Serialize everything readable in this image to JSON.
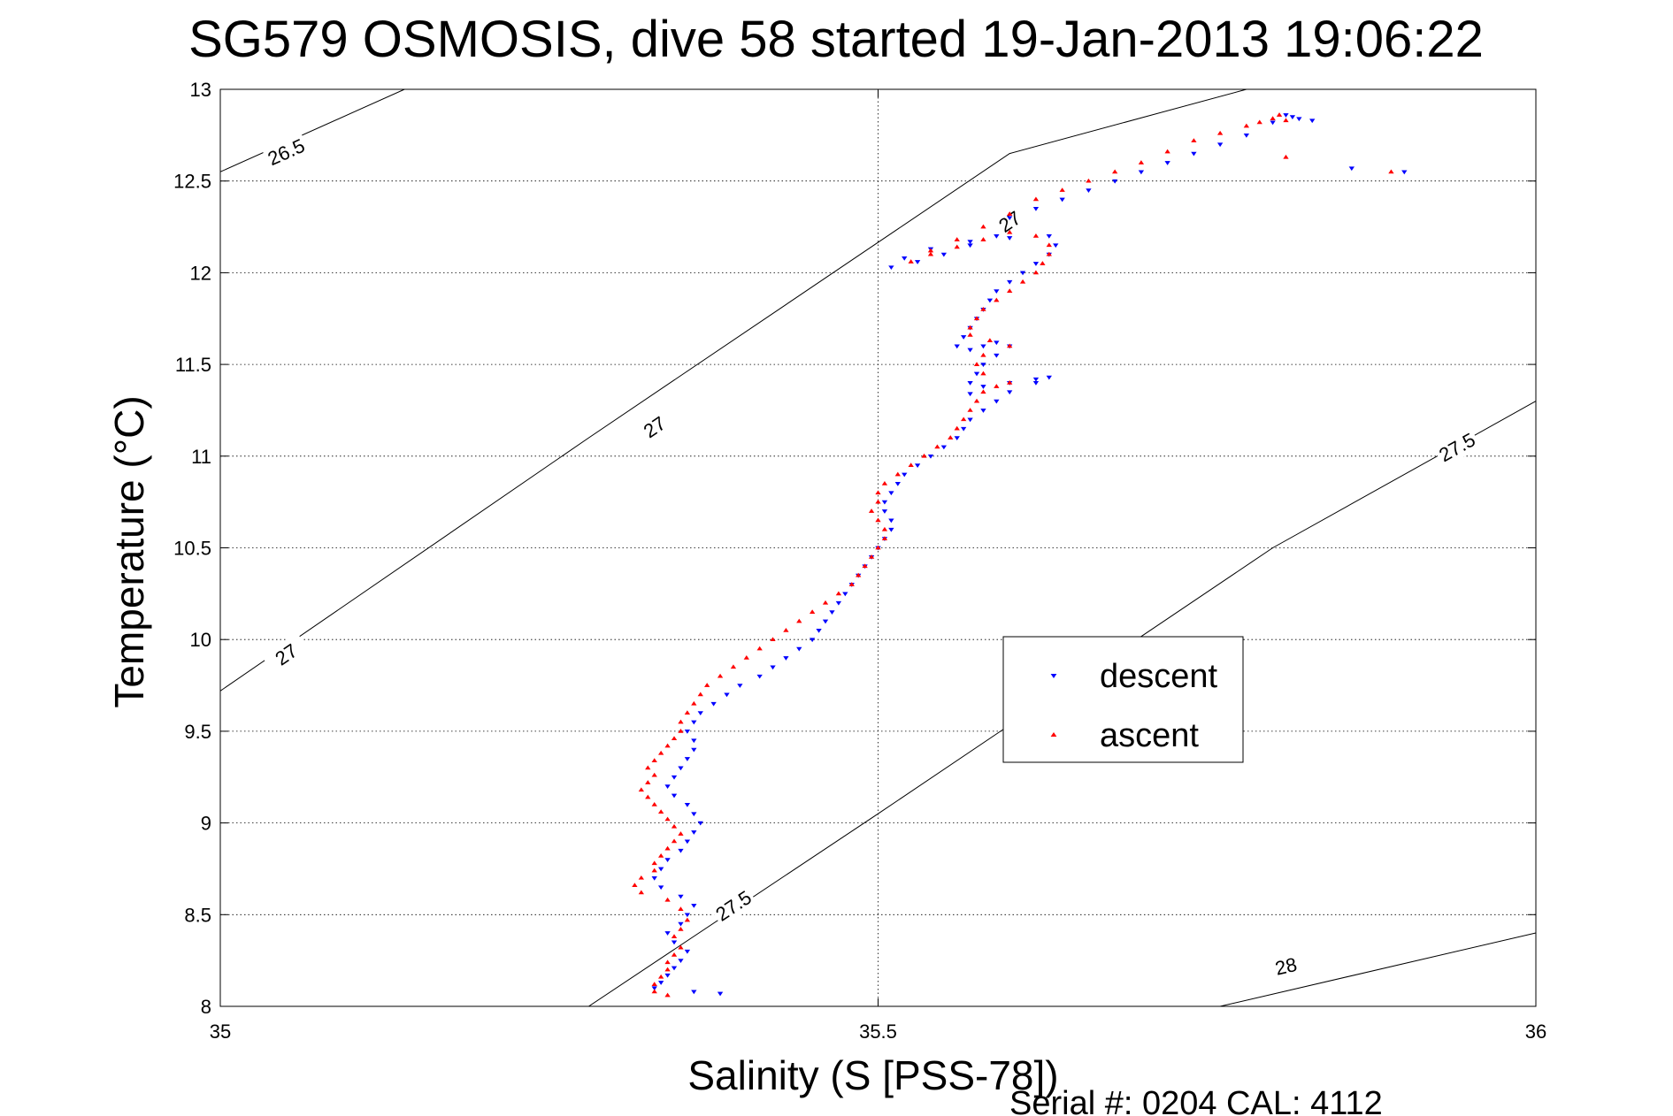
{
  "chart_data": {
    "type": "scatter",
    "title": "SG579 OSMOSIS, dive 58 started 19-Jan-2013 19:06:22",
    "xlabel": "Salinity (S [PSS-78])",
    "ylabel": "Temperature (°C)",
    "xlim": [
      35,
      36
    ],
    "ylim": [
      8,
      13
    ],
    "x_ticks": [
      35,
      35.5,
      36
    ],
    "y_ticks": [
      8,
      8.5,
      9,
      9.5,
      10,
      10.5,
      11,
      11.5,
      12,
      12.5,
      13
    ],
    "x_tick_labels": [
      "35",
      "35.5",
      "36"
    ],
    "y_tick_labels": [
      "8",
      "8.5",
      "9",
      "9.5",
      "10",
      "10.5",
      "11",
      "11.5",
      "12",
      "12.5",
      "13"
    ],
    "grid": true,
    "legend_position": "right-center",
    "footer": "Serial #: 0204  CAL: 4112",
    "density_contours": [
      {
        "label": "26.5",
        "points": [
          [
            35.0,
            12.55
          ],
          [
            35.14,
            13.0
          ]
        ],
        "label_positions": [
          [
            35.05,
            12.66
          ]
        ]
      },
      {
        "label": "27",
        "points": [
          [
            35.0,
            9.72
          ],
          [
            35.28,
            11.1
          ],
          [
            35.6,
            12.65
          ],
          [
            35.78,
            13.0
          ]
        ],
        "label_positions": [
          [
            35.05,
            9.92
          ],
          [
            35.33,
            11.16
          ],
          [
            35.6,
            12.28
          ]
        ]
      },
      {
        "label": "27.5",
        "points": [
          [
            35.28,
            8.0
          ],
          [
            35.5,
            9.05
          ],
          [
            35.8,
            10.5
          ],
          [
            36.0,
            11.3
          ]
        ],
        "label_positions": [
          [
            35.39,
            8.55
          ],
          [
            35.94,
            11.05
          ]
        ]
      },
      {
        "label": "28",
        "points": [
          [
            35.76,
            8.0
          ],
          [
            36.0,
            8.4
          ]
        ],
        "label_positions": [
          [
            35.81,
            8.22
          ]
        ]
      }
    ],
    "series": [
      {
        "name": "descent",
        "color": "#0000ff",
        "marker": "triangle-down",
        "points": [
          [
            35.38,
            8.07
          ],
          [
            35.36,
            8.08
          ],
          [
            35.33,
            8.1
          ],
          [
            35.335,
            8.13
          ],
          [
            35.34,
            8.17
          ],
          [
            35.345,
            8.21
          ],
          [
            35.35,
            8.25
          ],
          [
            35.355,
            8.3
          ],
          [
            35.345,
            8.35
          ],
          [
            35.34,
            8.4
          ],
          [
            35.35,
            8.45
          ],
          [
            35.355,
            8.5
          ],
          [
            35.36,
            8.55
          ],
          [
            35.35,
            8.6
          ],
          [
            35.335,
            8.65
          ],
          [
            35.33,
            8.7
          ],
          [
            35.335,
            8.75
          ],
          [
            35.34,
            8.8
          ],
          [
            35.35,
            8.85
          ],
          [
            35.355,
            8.9
          ],
          [
            35.36,
            8.95
          ],
          [
            35.365,
            9.0
          ],
          [
            35.36,
            9.05
          ],
          [
            35.355,
            9.1
          ],
          [
            35.345,
            9.15
          ],
          [
            35.34,
            9.2
          ],
          [
            35.345,
            9.25
          ],
          [
            35.35,
            9.3
          ],
          [
            35.355,
            9.35
          ],
          [
            35.36,
            9.4
          ],
          [
            35.36,
            9.45
          ],
          [
            35.355,
            9.5
          ],
          [
            35.36,
            9.55
          ],
          [
            35.365,
            9.6
          ],
          [
            35.375,
            9.65
          ],
          [
            35.385,
            9.7
          ],
          [
            35.395,
            9.75
          ],
          [
            35.41,
            9.8
          ],
          [
            35.42,
            9.85
          ],
          [
            35.43,
            9.9
          ],
          [
            35.44,
            9.95
          ],
          [
            35.45,
            10.0
          ],
          [
            35.455,
            10.05
          ],
          [
            35.46,
            10.1
          ],
          [
            35.465,
            10.15
          ],
          [
            35.47,
            10.2
          ],
          [
            35.475,
            10.25
          ],
          [
            35.48,
            10.3
          ],
          [
            35.485,
            10.35
          ],
          [
            35.49,
            10.4
          ],
          [
            35.495,
            10.45
          ],
          [
            35.5,
            10.5
          ],
          [
            35.505,
            10.55
          ],
          [
            35.51,
            10.6
          ],
          [
            35.51,
            10.65
          ],
          [
            35.505,
            10.7
          ],
          [
            35.505,
            10.75
          ],
          [
            35.51,
            10.8
          ],
          [
            35.515,
            10.85
          ],
          [
            35.52,
            10.9
          ],
          [
            35.53,
            10.95
          ],
          [
            35.54,
            11.0
          ],
          [
            35.55,
            11.05
          ],
          [
            35.56,
            11.1
          ],
          [
            35.565,
            11.15
          ],
          [
            35.57,
            11.2
          ],
          [
            35.58,
            11.25
          ],
          [
            35.59,
            11.3
          ],
          [
            35.6,
            11.35
          ],
          [
            35.62,
            11.4
          ],
          [
            35.63,
            11.43
          ],
          [
            35.62,
            11.42
          ],
          [
            35.6,
            11.4
          ],
          [
            35.58,
            11.38
          ],
          [
            35.57,
            11.34
          ],
          [
            35.57,
            11.4
          ],
          [
            35.575,
            11.45
          ],
          [
            35.58,
            11.5
          ],
          [
            35.59,
            11.55
          ],
          [
            35.6,
            11.6
          ],
          [
            35.59,
            11.62
          ],
          [
            35.58,
            11.6
          ],
          [
            35.57,
            11.58
          ],
          [
            35.56,
            11.6
          ],
          [
            35.565,
            11.65
          ],
          [
            35.57,
            11.7
          ],
          [
            35.575,
            11.75
          ],
          [
            35.58,
            11.8
          ],
          [
            35.585,
            11.85
          ],
          [
            35.59,
            11.9
          ],
          [
            35.6,
            11.95
          ],
          [
            35.61,
            12.0
          ],
          [
            35.62,
            12.05
          ],
          [
            35.63,
            12.1
          ],
          [
            35.635,
            12.15
          ],
          [
            35.63,
            12.2
          ],
          [
            35.6,
            12.19
          ],
          [
            35.57,
            12.17
          ],
          [
            35.54,
            12.13
          ],
          [
            35.52,
            12.08
          ],
          [
            35.51,
            12.03
          ],
          [
            35.53,
            12.06
          ],
          [
            35.55,
            12.1
          ],
          [
            35.57,
            12.15
          ],
          [
            35.59,
            12.2
          ],
          [
            35.6,
            12.3
          ],
          [
            35.62,
            12.35
          ],
          [
            35.64,
            12.4
          ],
          [
            35.66,
            12.45
          ],
          [
            35.68,
            12.5
          ],
          [
            35.7,
            12.55
          ],
          [
            35.72,
            12.6
          ],
          [
            35.74,
            12.65
          ],
          [
            35.76,
            12.7
          ],
          [
            35.78,
            12.75
          ],
          [
            35.8,
            12.82
          ],
          [
            35.81,
            12.86
          ],
          [
            35.815,
            12.85
          ],
          [
            35.82,
            12.84
          ],
          [
            35.83,
            12.83
          ],
          [
            35.86,
            12.57
          ],
          [
            35.9,
            12.55
          ]
        ]
      },
      {
        "name": "ascent",
        "color": "#ff0000",
        "marker": "triangle-up",
        "points": [
          [
            35.34,
            8.06
          ],
          [
            35.33,
            8.08
          ],
          [
            35.33,
            8.12
          ],
          [
            35.335,
            8.16
          ],
          [
            35.34,
            8.2
          ],
          [
            35.34,
            8.24
          ],
          [
            35.345,
            8.28
          ],
          [
            35.35,
            8.32
          ],
          [
            35.345,
            8.38
          ],
          [
            35.35,
            8.42
          ],
          [
            35.355,
            8.47
          ],
          [
            35.35,
            8.53
          ],
          [
            35.34,
            8.58
          ],
          [
            35.32,
            8.62
          ],
          [
            35.315,
            8.66
          ],
          [
            35.32,
            8.7
          ],
          [
            35.33,
            8.74
          ],
          [
            35.33,
            8.78
          ],
          [
            35.335,
            8.82
          ],
          [
            35.34,
            8.86
          ],
          [
            35.345,
            8.9
          ],
          [
            35.35,
            8.94
          ],
          [
            35.345,
            8.98
          ],
          [
            35.34,
            9.02
          ],
          [
            35.335,
            9.06
          ],
          [
            35.33,
            9.1
          ],
          [
            35.325,
            9.14
          ],
          [
            35.32,
            9.18
          ],
          [
            35.325,
            9.22
          ],
          [
            35.33,
            9.26
          ],
          [
            35.325,
            9.3
          ],
          [
            35.33,
            9.34
          ],
          [
            35.335,
            9.38
          ],
          [
            35.34,
            9.42
          ],
          [
            35.345,
            9.46
          ],
          [
            35.35,
            9.5
          ],
          [
            35.35,
            9.55
          ],
          [
            35.355,
            9.6
          ],
          [
            35.36,
            9.65
          ],
          [
            35.365,
            9.7
          ],
          [
            35.37,
            9.75
          ],
          [
            35.38,
            9.8
          ],
          [
            35.39,
            9.85
          ],
          [
            35.4,
            9.9
          ],
          [
            35.41,
            9.95
          ],
          [
            35.42,
            10.0
          ],
          [
            35.43,
            10.05
          ],
          [
            35.44,
            10.1
          ],
          [
            35.45,
            10.15
          ],
          [
            35.46,
            10.2
          ],
          [
            35.47,
            10.25
          ],
          [
            35.48,
            10.3
          ],
          [
            35.485,
            10.35
          ],
          [
            35.49,
            10.4
          ],
          [
            35.495,
            10.45
          ],
          [
            35.5,
            10.5
          ],
          [
            35.505,
            10.55
          ],
          [
            35.505,
            10.6
          ],
          [
            35.5,
            10.65
          ],
          [
            35.495,
            10.7
          ],
          [
            35.5,
            10.75
          ],
          [
            35.5,
            10.8
          ],
          [
            35.505,
            10.85
          ],
          [
            35.515,
            10.9
          ],
          [
            35.525,
            10.95
          ],
          [
            35.535,
            11.0
          ],
          [
            35.545,
            11.05
          ],
          [
            35.555,
            11.1
          ],
          [
            35.56,
            11.15
          ],
          [
            35.565,
            11.2
          ],
          [
            35.57,
            11.25
          ],
          [
            35.575,
            11.3
          ],
          [
            35.58,
            11.35
          ],
          [
            35.59,
            11.38
          ],
          [
            35.6,
            11.4
          ],
          [
            35.58,
            11.45
          ],
          [
            35.575,
            11.5
          ],
          [
            35.58,
            11.55
          ],
          [
            35.6,
            11.6
          ],
          [
            35.585,
            11.63
          ],
          [
            35.57,
            11.66
          ],
          [
            35.57,
            11.7
          ],
          [
            35.575,
            11.75
          ],
          [
            35.58,
            11.8
          ],
          [
            35.59,
            11.85
          ],
          [
            35.6,
            11.9
          ],
          [
            35.61,
            11.95
          ],
          [
            35.62,
            12.0
          ],
          [
            35.625,
            12.05
          ],
          [
            35.63,
            12.1
          ],
          [
            35.63,
            12.15
          ],
          [
            35.62,
            12.2
          ],
          [
            35.6,
            12.22
          ],
          [
            35.58,
            12.18
          ],
          [
            35.56,
            12.14
          ],
          [
            35.54,
            12.1
          ],
          [
            35.525,
            12.06
          ],
          [
            35.54,
            12.12
          ],
          [
            35.56,
            12.18
          ],
          [
            35.58,
            12.25
          ],
          [
            35.6,
            12.32
          ],
          [
            35.62,
            12.4
          ],
          [
            35.64,
            12.45
          ],
          [
            35.66,
            12.5
          ],
          [
            35.68,
            12.55
          ],
          [
            35.7,
            12.6
          ],
          [
            35.72,
            12.66
          ],
          [
            35.74,
            12.72
          ],
          [
            35.76,
            12.76
          ],
          [
            35.78,
            12.8
          ],
          [
            35.79,
            12.82
          ],
          [
            35.8,
            12.84
          ],
          [
            35.81,
            12.83
          ],
          [
            35.805,
            12.86
          ],
          [
            35.81,
            12.63
          ],
          [
            35.89,
            12.55
          ]
        ]
      }
    ]
  }
}
